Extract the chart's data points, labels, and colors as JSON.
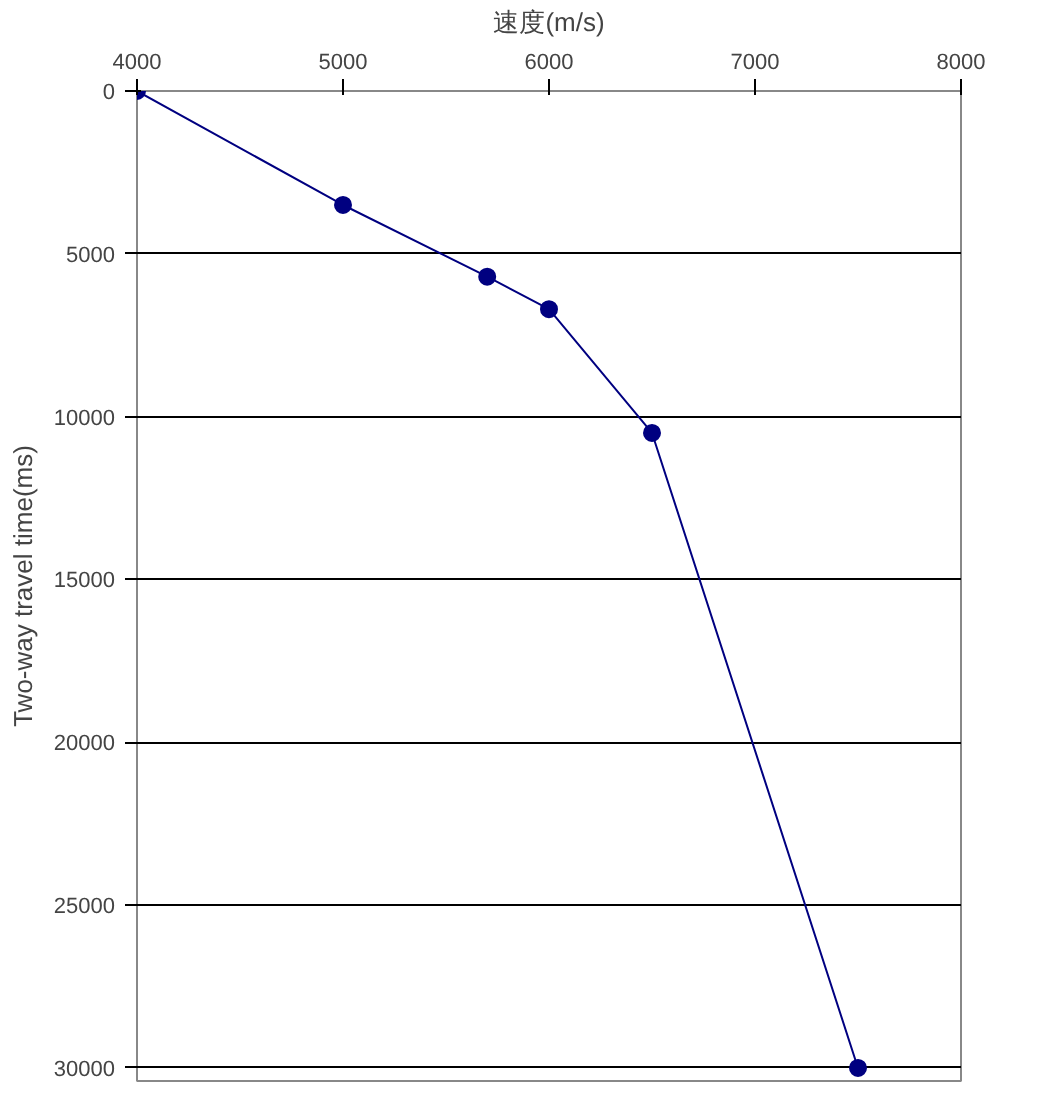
{
  "chart_data": {
    "type": "line",
    "xlabel": "速度(m/s)",
    "ylabel": "Two-way travel time(ms)",
    "x": [
      4000,
      5000,
      5700,
      6000,
      6500,
      7500
    ],
    "series": [
      {
        "color": "#000080",
        "values": [
          0,
          3500,
          5700,
          6700,
          10500,
          30000
        ]
      }
    ],
    "xlim": [
      4000,
      8000
    ],
    "xticks": [
      4000,
      5000,
      6000,
      7000,
      8000
    ],
    "ylim": [
      30400,
      0
    ],
    "yticks": [
      0,
      5000,
      10000,
      15000,
      20000,
      25000,
      30000
    ],
    "grid": "y",
    "marker": "circle",
    "line_style": "solid"
  }
}
